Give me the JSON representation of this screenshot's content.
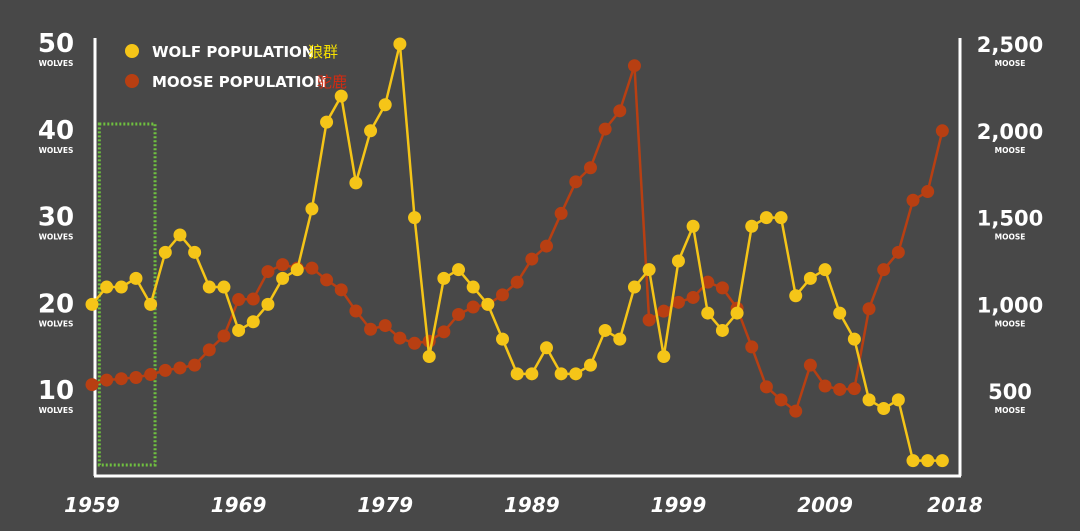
{
  "chart_data": {
    "type": "line",
    "colors": {
      "wolf": "#f5c518",
      "moose": "#b83f12",
      "axis": "#ffffff",
      "highlight": "#6fc040",
      "background": "#484848"
    },
    "legend": [
      {
        "key": "wolf",
        "label": "WOLF POPULATION",
        "label_cn": "狼群",
        "label_cn_color": "#f5e000"
      },
      {
        "key": "moose",
        "label": "MOOSE POPULATION",
        "label_cn": "驼鹿",
        "label_cn_color": "#d42a10"
      }
    ],
    "legend_position": "top-left",
    "y_left": {
      "range": [
        0,
        50
      ],
      "ticks": [
        {
          "value": 10,
          "label": "10",
          "unit": "WOLVES"
        },
        {
          "value": 20,
          "label": "20",
          "unit": "WOLVES"
        },
        {
          "value": 30,
          "label": "30",
          "unit": "WOLVES"
        },
        {
          "value": 40,
          "label": "40",
          "unit": "WOLVES"
        },
        {
          "value": 50,
          "label": "50",
          "unit": "WOLVES"
        }
      ]
    },
    "y_right": {
      "range": [
        0,
        2500
      ],
      "ticks": [
        {
          "value": 500,
          "label": "500",
          "unit": "MOOSE"
        },
        {
          "value": 1000,
          "label": "1,000",
          "unit": "MOOSE"
        },
        {
          "value": 1500,
          "label": "1,500",
          "unit": "MOOSE"
        },
        {
          "value": 2000,
          "label": "2,000",
          "unit": "MOOSE"
        },
        {
          "value": 2500,
          "label": "2,500",
          "unit": "MOOSE"
        }
      ]
    },
    "x_axis": {
      "range": [
        1959,
        2018
      ],
      "ticks": [
        "1959",
        "1969",
        "1979",
        "1989",
        "1999",
        "2009",
        "2018"
      ]
    },
    "highlight_box": {
      "from_year": 1959.5,
      "to_year": 1963.3,
      "label": ""
    },
    "series": [
      {
        "name": "WOLF POPULATION",
        "key": "wolf",
        "axis": "left",
        "x": [
          1959,
          1960,
          1961,
          1962,
          1963,
          1964,
          1965,
          1966,
          1967,
          1968,
          1969,
          1970,
          1971,
          1972,
          1973,
          1974,
          1975,
          1976,
          1977,
          1978,
          1979,
          1980,
          1981,
          1982,
          1983,
          1984,
          1985,
          1986,
          1987,
          1988,
          1989,
          1990,
          1991,
          1992,
          1993,
          1994,
          1995,
          1996,
          1997,
          1998,
          1999,
          2000,
          2001,
          2002,
          2003,
          2004,
          2005,
          2006,
          2007,
          2008,
          2009,
          2010,
          2011,
          2012,
          2013,
          2014,
          2015,
          2016,
          2017,
          2018
        ],
        "values": [
          20,
          22,
          22,
          23,
          20,
          26,
          28,
          26,
          22,
          22,
          17,
          18,
          20,
          23,
          24,
          31,
          41,
          44,
          34,
          40,
          43,
          50,
          30,
          14,
          23,
          24,
          22,
          20,
          16,
          12,
          12,
          15,
          12,
          12,
          13,
          17,
          16,
          22,
          24,
          14,
          25,
          29,
          19,
          17,
          19,
          29,
          30,
          30,
          21,
          23,
          24,
          19,
          16,
          9,
          8,
          9,
          2,
          2,
          2,
          2
        ],
        "draw_to_year": 2017
      },
      {
        "name": "MOOSE POPULATION",
        "key": "moose",
        "axis": "right",
        "x": [
          1959,
          1960,
          1961,
          1962,
          1963,
          1964,
          1965,
          1966,
          1967,
          1968,
          1969,
          1970,
          1971,
          1972,
          1973,
          1974,
          1975,
          1976,
          1977,
          1978,
          1979,
          1980,
          1981,
          1982,
          1983,
          1984,
          1985,
          1986,
          1987,
          1988,
          1989,
          1990,
          1991,
          1992,
          1993,
          1994,
          1995,
          1996,
          1997,
          1998,
          1999,
          2000,
          2001,
          2002,
          2003,
          2004,
          2005,
          2006,
          2007,
          2008,
          2009,
          2010,
          2011,
          2012,
          2013,
          2014,
          2015,
          2016,
          2017,
          2018
        ],
        "values": [
          538,
          564,
          572,
          579,
          596,
          620,
          634,
          650,
          738,
          818,
          1028,
          1031,
          1189,
          1229,
          1209,
          1209,
          1141,
          1084,
          962,
          857,
          878,
          806,
          776,
          788,
          842,
          942,
          985,
          1000,
          1055,
          1128,
          1261,
          1336,
          1524,
          1706,
          1787,
          2010,
          2115,
          2375,
          910,
          961,
          1012,
          1040,
          1128,
          1095,
          978,
          755,
          525,
          450,
          385,
          650,
          530,
          510,
          515,
          975,
          1200,
          1300,
          1600,
          1650,
          2000,
          2000
        ],
        "draw_to_year": 2017
      }
    ]
  }
}
